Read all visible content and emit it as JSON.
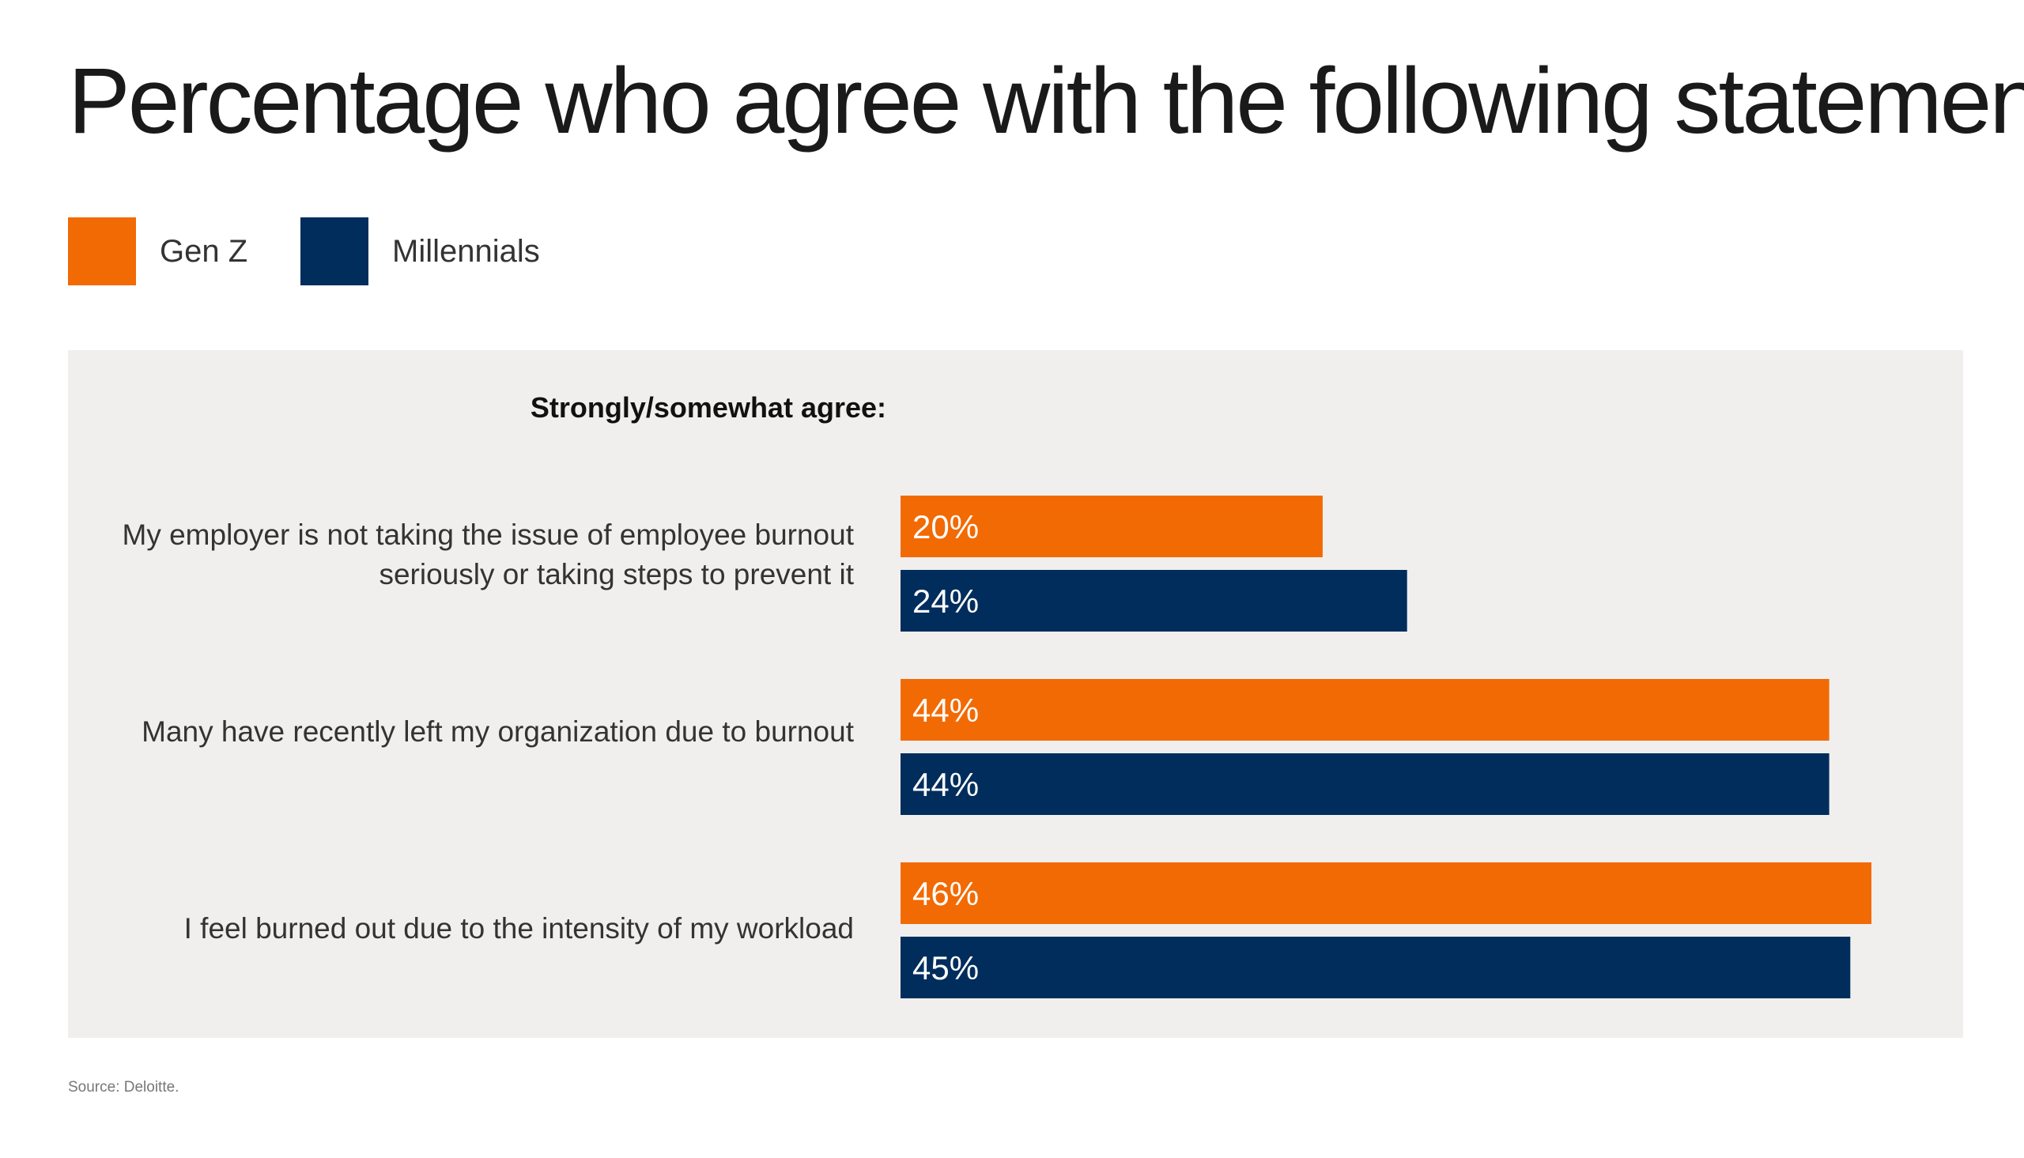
{
  "title": "Percentage who agree with the following statements",
  "subheading": "Strongly/somewhat agree:",
  "source": "Source: Deloitte.",
  "colors": {
    "genz": "#f26a04",
    "millennials": "#002d5c",
    "panel": "#f0efee"
  },
  "legend": [
    {
      "label": "Gen Z",
      "color": "#f26a04"
    },
    {
      "label": "Millennials",
      "color": "#002d5c"
    }
  ],
  "chart_data": {
    "type": "bar",
    "orientation": "horizontal",
    "title": "Percentage who agree with the following statements",
    "categories": [
      "My employer is not taking the issue of employee burnout seriously or taking steps to prevent it",
      "Many have recently left  my organization due to burnout",
      "I feel burned out due to the intensity of my workload"
    ],
    "series": [
      {
        "name": "Gen Z",
        "color": "#f26a04",
        "values": [
          20,
          44,
          46
        ],
        "labels": [
          "20%",
          "44%",
          "46%"
        ]
      },
      {
        "name": "Millennials",
        "color": "#002d5c",
        "values": [
          24,
          44,
          45
        ],
        "labels": [
          "24%",
          "44%",
          "45%"
        ]
      }
    ],
    "value_unit": "%",
    "legend_position": "top-left"
  }
}
